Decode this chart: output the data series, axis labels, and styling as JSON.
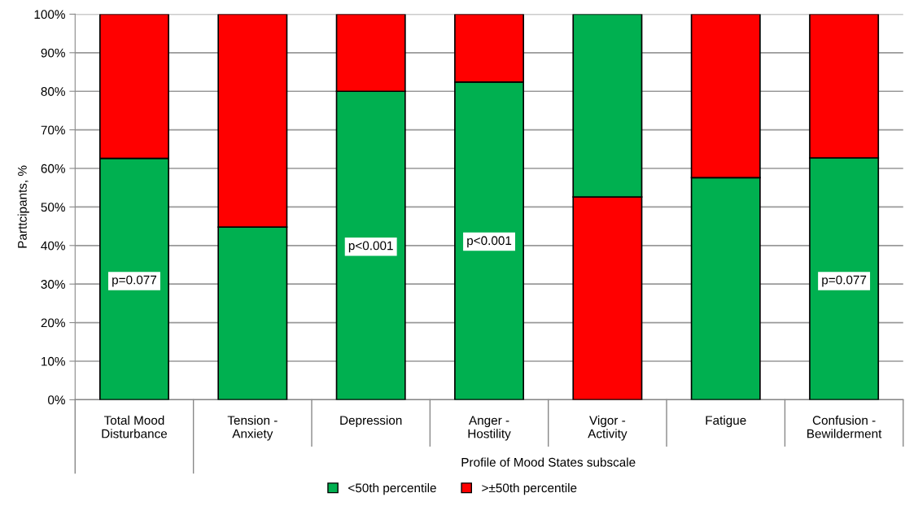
{
  "chart_data": {
    "type": "bar",
    "stacked": true,
    "categories": [
      "Total Mood\nDisturbance",
      "Tension -\nAnxiety",
      "Depression",
      "Anger -\nHostility",
      "Vigor -\nActivity",
      "Fatigue",
      "Confusion -\nBewilderment"
    ],
    "series": [
      {
        "color": "#ff0000",
        "values": [
          null,
          null,
          null,
          null,
          52.6,
          null,
          null
        ]
      },
      {
        "name": "<50th percentile",
        "color": "#00b050",
        "values": [
          62.6,
          44.8,
          80,
          82.4,
          47.4,
          57.6,
          62.7
        ]
      },
      {
        "name": ">±50th percentile",
        "color": "#ff0000",
        "values": [
          37.4,
          55.2,
          20,
          17.6,
          null,
          42.4,
          37.3
        ]
      }
    ],
    "ylabel": "Parttcipants, %",
    "xlabel": "Profile of Mood States subscale",
    "ylim": [
      0,
      100
    ],
    "yticks": [
      {
        "value": 0,
        "label": "0%"
      },
      {
        "value": 10,
        "label": "10%"
      },
      {
        "value": 20,
        "label": "20%"
      },
      {
        "value": 30,
        "label": "30%"
      },
      {
        "value": 40,
        "label": "40%"
      },
      {
        "value": 50,
        "label": "50%"
      },
      {
        "value": 60,
        "label": "60%"
      },
      {
        "value": 70,
        "label": "70%"
      },
      {
        "value": 80,
        "label": "80%"
      },
      {
        "value": 90,
        "label": "90%"
      },
      {
        "value": 100,
        "label": "100%"
      }
    ],
    "grid": "y",
    "legend": "bottom",
    "annotations": [
      "p=0.077",
      "p<0.001",
      "p<0.001",
      "p=0.077"
    ]
  }
}
